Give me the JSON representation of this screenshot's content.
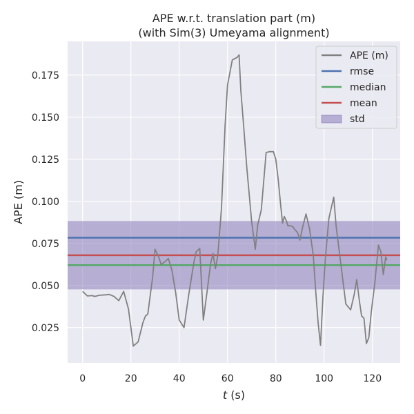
{
  "chart_data": {
    "type": "line",
    "title_line1": "APE w.r.t. translation part (m)",
    "title_line2": "(with Sim(3) Umeyama alignment)",
    "xlabel_italic": "t",
    "xlabel_rest": " (s)",
    "ylabel": "APE (m)",
    "xlim": [
      -6.2,
      131.5
    ],
    "ylim": [
      0.004,
      0.195
    ],
    "xticks": [
      0,
      20,
      40,
      60,
      80,
      100,
      120
    ],
    "yticks": [
      0.025,
      0.05,
      0.075,
      0.1,
      0.125,
      0.15,
      0.175
    ],
    "ytick_labels": [
      "0.025",
      "0.050",
      "0.075",
      "0.100",
      "0.125",
      "0.150",
      "0.175"
    ],
    "grid": true,
    "legend_position": "top-right",
    "legend": [
      {
        "label": "APE (m)",
        "kind": "line",
        "color": "#808080"
      },
      {
        "label": "rmse",
        "kind": "line",
        "color": "#4c72b0"
      },
      {
        "label": "median",
        "kind": "line",
        "color": "#55a868"
      },
      {
        "label": "mean",
        "kind": "line",
        "color": "#c44e52"
      },
      {
        "label": "std",
        "kind": "patch",
        "color": "#8172b3"
      }
    ],
    "series": [
      {
        "name": "APE (m)",
        "color": "#808080",
        "x": [
          0,
          2,
          4,
          5,
          7,
          10,
          11,
          13,
          15,
          17,
          19,
          21,
          23,
          25,
          26,
          27,
          29,
          30,
          31.5,
          32.5,
          34,
          35.5,
          37,
          38.5,
          40,
          42,
          44,
          46,
          47,
          48.5,
          50,
          51.5,
          53,
          54,
          55,
          56,
          57.5,
          59,
          60,
          62,
          64,
          64.8,
          65.5,
          66.5,
          68,
          70,
          71.5,
          72.5,
          74,
          76,
          77.5,
          79,
          80,
          81,
          82,
          82.8,
          83.5,
          84.5,
          85,
          86,
          87,
          88,
          89,
          90,
          91,
          92.5,
          94,
          95.5,
          96.5,
          97.5,
          98.5,
          99.5,
          100.5,
          102,
          104,
          105,
          107,
          109,
          111,
          112.5,
          113.5,
          114.5,
          115.5,
          116.5,
          117.5,
          118.5,
          119.5,
          121,
          122.5,
          123.5,
          124.5,
          125.5,
          126
        ],
        "y": [
          0.0465,
          0.0438,
          0.044,
          0.0435,
          0.0442,
          0.0445,
          0.0447,
          0.0435,
          0.041,
          0.0465,
          0.036,
          0.014,
          0.0165,
          0.028,
          0.0318,
          0.033,
          0.055,
          0.0715,
          0.067,
          0.0625,
          0.064,
          0.066,
          0.059,
          0.046,
          0.0295,
          0.025,
          0.045,
          0.063,
          0.07,
          0.072,
          0.0295,
          0.046,
          0.063,
          0.069,
          0.06,
          0.068,
          0.096,
          0.145,
          0.169,
          0.184,
          0.1855,
          0.187,
          0.166,
          0.148,
          0.12,
          0.088,
          0.0715,
          0.086,
          0.095,
          0.129,
          0.1295,
          0.1295,
          0.125,
          0.113,
          0.098,
          0.087,
          0.091,
          0.088,
          0.0855,
          0.0855,
          0.085,
          0.083,
          0.0815,
          0.077,
          0.084,
          0.0925,
          0.0835,
          0.068,
          0.047,
          0.028,
          0.0145,
          0.043,
          0.066,
          0.09,
          0.1025,
          0.085,
          0.062,
          0.039,
          0.0355,
          0.045,
          0.0535,
          0.042,
          0.032,
          0.0305,
          0.0155,
          0.019,
          0.034,
          0.0515,
          0.074,
          0.07,
          0.0565,
          0.067,
          0.065
        ]
      }
    ],
    "stats": {
      "rmse": 0.0784,
      "median": 0.0621,
      "mean": 0.068,
      "std_band": [
        0.0477,
        0.0883
      ]
    }
  }
}
